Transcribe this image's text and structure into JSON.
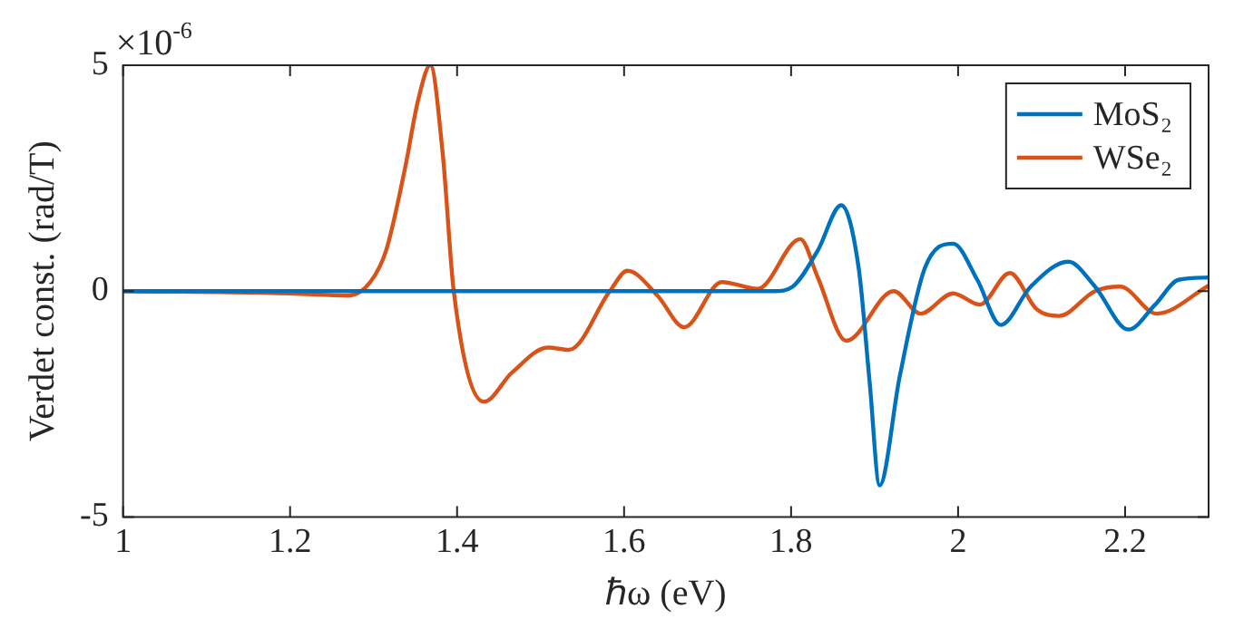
{
  "chart_data": {
    "type": "line",
    "xlabel": "ℏω (eV)",
    "ylabel": "Verdet const. (rad/T)",
    "annotations": [
      "×10$^{-6}$"
    ],
    "xlim": [
      1,
      2.3
    ],
    "xticks": [
      1,
      1.2,
      1.4,
      1.6,
      1.8,
      2,
      2.2
    ],
    "ylim": [
      -5,
      5
    ],
    "yticks": [
      -5,
      0,
      5
    ],
    "grid": false,
    "legend": "top right",
    "marker": "none",
    "line_style": "solid",
    "series": [
      {
        "name": "MoS₂",
        "color": "#0072bd",
        "x": [
          1,
          1.5,
          1.78,
          1.802,
          1.832,
          1.86,
          1.881,
          1.894,
          1.906,
          1.93,
          1.96,
          1.994,
          2.023,
          2.051,
          2.087,
          2.132,
          2.164,
          2.204,
          2.236,
          2.264,
          2.3
        ],
        "values": [
          0,
          0,
          0,
          0.1,
          0.9,
          1.9,
          0.5,
          -2,
          -4.3,
          -1.9,
          0.5,
          1.05,
          0.25,
          -0.75,
          0.1,
          0.65,
          0.1,
          -0.85,
          -0.3,
          0.25,
          0.3
        ]
      },
      {
        "name": "WSe₂",
        "color": "#d95319",
        "x": [
          1,
          1.2,
          1.27,
          1.296,
          1.315,
          1.338,
          1.353,
          1.368,
          1.383,
          1.396,
          1.432,
          1.466,
          1.509,
          1.534,
          1.583,
          1.604,
          1.64,
          1.672,
          1.717,
          1.76,
          1.811,
          1.832,
          1.866,
          1.923,
          1.955,
          1.994,
          2.026,
          2.062,
          2.094,
          2.121,
          2.164,
          2.194,
          2.238,
          2.3
        ],
        "values": [
          0,
          -0.05,
          -0.1,
          0.2,
          0.9,
          2.75,
          4.2,
          5,
          3,
          0,
          -2.45,
          -1.8,
          -1.25,
          -1.3,
          0,
          0.45,
          -0.1,
          -0.8,
          0.2,
          0.05,
          1.15,
          0.3,
          -1.1,
          0,
          -0.5,
          -0.05,
          -0.3,
          0.4,
          -0.4,
          -0.55,
          0,
          0.1,
          -0.5,
          0.12
        ]
      }
    ]
  }
}
